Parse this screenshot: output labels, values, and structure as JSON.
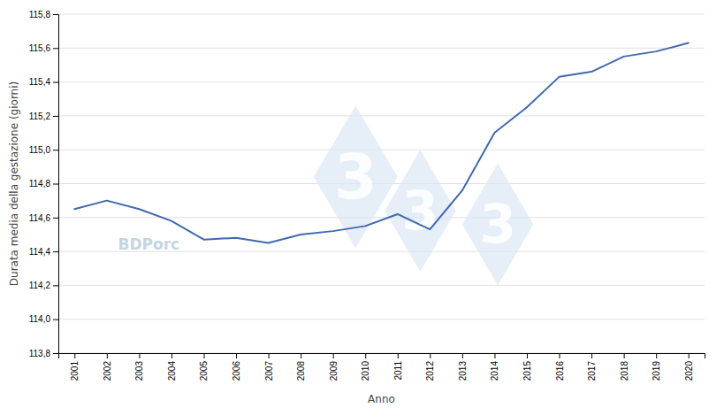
{
  "chart_data": {
    "type": "line",
    "x": [
      2001,
      2002,
      2003,
      2004,
      2005,
      2006,
      2007,
      2008,
      2009,
      2010,
      2011,
      2012,
      2013,
      2014,
      2015,
      2016,
      2017,
      2018,
      2019,
      2020
    ],
    "values": [
      114.65,
      114.7,
      114.65,
      114.58,
      114.47,
      114.48,
      114.45,
      114.5,
      114.52,
      114.55,
      114.62,
      114.53,
      114.76,
      115.1,
      115.25,
      115.43,
      115.46,
      115.55,
      115.58,
      115.63
    ],
    "color": "#4169b0",
    "x_label": "Anno",
    "y_label": "Durata media della gestazione (giorni)",
    "xlim": [
      2000.5,
      2020.5
    ],
    "xticks": [
      2001,
      2002,
      2003,
      2004,
      2005,
      2006,
      2007,
      2008,
      2009,
      2010,
      2011,
      2012,
      2013,
      2014,
      2015,
      2016,
      2017,
      2018,
      2019,
      2020
    ],
    "ylim": [
      113.8,
      115.8
    ],
    "yticks": [
      {
        "value": 113.8,
        "label": "113,8"
      },
      {
        "value": 114.0,
        "label": "114,0"
      },
      {
        "value": 114.2,
        "label": "114,2"
      },
      {
        "value": 114.4,
        "label": "114,4"
      },
      {
        "value": 114.6,
        "label": "114,6"
      },
      {
        "value": 114.8,
        "label": "114,8"
      },
      {
        "value": 115.0,
        "label": "115,0"
      },
      {
        "value": 115.2,
        "label": "115,2"
      },
      {
        "value": 115.4,
        "label": "115,4"
      },
      {
        "value": 115.6,
        "label": "115,6"
      },
      {
        "value": 115.8,
        "label": "115,8"
      }
    ],
    "grid": true,
    "annotations": [
      "BDPorc",
      "3",
      "3",
      "3"
    ]
  }
}
